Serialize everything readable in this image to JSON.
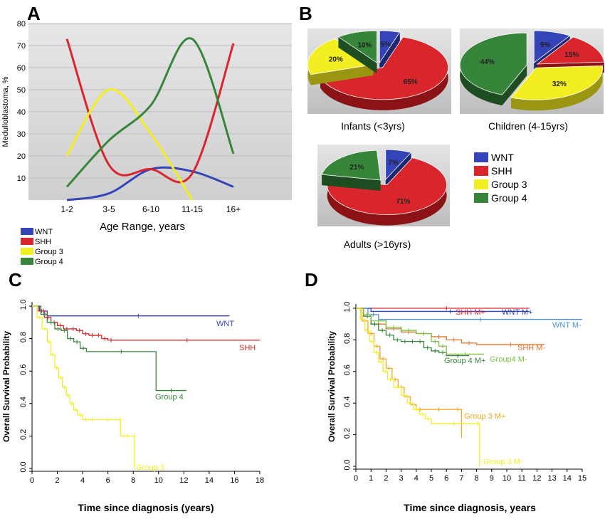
{
  "colors": {
    "WNT": "#3444b8",
    "SHH": "#d8262c",
    "Group 3": "#f2ee22",
    "Group 4": "#36853a"
  },
  "panels": {
    "A": "A",
    "B": "B",
    "C": "C",
    "D": "D"
  },
  "legendA": [
    "WNT",
    "SHH",
    "Group 3",
    "Group 4"
  ],
  "legendB": [
    "WNT",
    "SHH",
    "Group 3",
    "Group 4"
  ],
  "chart_data": [
    {
      "id": "A",
      "type": "line",
      "xlabel": "Age Range, years",
      "ylabel": "Medulloblastoma, %",
      "categories": [
        "1-2",
        "3-5",
        "6-10",
        "11-15",
        "16+"
      ],
      "ylim": [
        0,
        80
      ],
      "yticks": [
        10,
        20,
        30,
        40,
        50,
        60,
        70,
        80
      ],
      "grid": true,
      "series": [
        {
          "name": "WNT",
          "values": [
            0,
            3,
            14,
            13,
            6
          ]
        },
        {
          "name": "SHH",
          "values": [
            73,
            16,
            14,
            12,
            71
          ]
        },
        {
          "name": "Group 3",
          "values": [
            20,
            50,
            30,
            0,
            null
          ]
        },
        {
          "name": "Group 4",
          "values": [
            6,
            27,
            43,
            73,
            21
          ]
        }
      ]
    },
    {
      "id": "B",
      "type": "pie",
      "pies": [
        {
          "label": "Infants (<3yrs)",
          "slices": [
            {
              "name": "WNT",
              "value": 5,
              "label": "5%"
            },
            {
              "name": "SHH",
              "value": 65,
              "label": "65%"
            },
            {
              "name": "Group 3",
              "value": 20,
              "label": "20%"
            },
            {
              "name": "Group 4",
              "value": 10,
              "label": "10%"
            }
          ]
        },
        {
          "label": "Children (4-15yrs)",
          "slices": [
            {
              "name": "WNT",
              "value": 9,
              "label": "9%"
            },
            {
              "name": "SHH",
              "value": 15,
              "label": "15%"
            },
            {
              "name": "Group 3",
              "value": 32,
              "label": "32%"
            },
            {
              "name": "Group 4",
              "value": 44,
              "label": "44%"
            }
          ]
        },
        {
          "label": "Adults (>16yrs)",
          "slices": [
            {
              "name": "WNT",
              "value": 7,
              "label": "7%"
            },
            {
              "name": "SHH",
              "value": 71,
              "label": "71%"
            },
            {
              "name": "Group 3",
              "value": 0,
              "label": ""
            },
            {
              "name": "Group 4",
              "value": 21,
              "label": "21%"
            }
          ]
        }
      ]
    },
    {
      "id": "C",
      "type": "line",
      "xlabel": "Time since diagnosis (years)",
      "ylabel": "Overall Survival Probability",
      "xlim": [
        0,
        18
      ],
      "xticks": [
        0,
        2,
        4,
        6,
        8,
        10,
        12,
        14,
        16,
        18
      ],
      "ylim": [
        0,
        1
      ],
      "yticks": [
        "0.0",
        "0.2",
        "0.4",
        "0.6",
        "0.8",
        "1.0"
      ],
      "series": [
        {
          "name": "WNT",
          "label": "WNT",
          "x": [
            0,
            0.6,
            1.2,
            15.6
          ],
          "y": [
            1,
            0.97,
            0.94,
            0.94
          ]
        },
        {
          "name": "SHH",
          "label": "SHH",
          "x": [
            0,
            0.5,
            1,
            1.5,
            2,
            2.5,
            3,
            3.5,
            4,
            4.5,
            5,
            5.5,
            6,
            6.5,
            18
          ],
          "y": [
            1,
            0.97,
            0.93,
            0.9,
            0.88,
            0.86,
            0.86,
            0.85,
            0.83,
            0.82,
            0.82,
            0.8,
            0.79,
            0.79,
            0.79
          ]
        },
        {
          "name": "Group 4",
          "label": "Group 4",
          "x": [
            0,
            0.7,
            1.2,
            1.8,
            2.3,
            2.8,
            3.3,
            3.8,
            4.3,
            9.8,
            12.2
          ],
          "y": [
            1,
            0.95,
            0.9,
            0.86,
            0.85,
            0.8,
            0.78,
            0.74,
            0.72,
            0.48,
            0.48
          ]
        },
        {
          "name": "Group 3",
          "label": "Group 3",
          "x": [
            0,
            0.4,
            0.8,
            1.2,
            1.5,
            1.8,
            2.1,
            2.4,
            2.7,
            3.0,
            3.3,
            3.6,
            4.0,
            4.5,
            5.0,
            6.9,
            7.0,
            8.1,
            8.1
          ],
          "y": [
            1,
            0.93,
            0.86,
            0.78,
            0.7,
            0.62,
            0.56,
            0.5,
            0.45,
            0.4,
            0.36,
            0.33,
            0.3,
            0.3,
            0.3,
            0.3,
            0.2,
            0.2,
            0
          ]
        }
      ]
    },
    {
      "id": "D",
      "type": "line",
      "xlabel": "Time since diagnosis, years",
      "ylabel": "Overall Survival Probability",
      "xlim": [
        0,
        15
      ],
      "xticks": [
        0,
        1,
        2,
        3,
        4,
        5,
        6,
        7,
        8,
        9,
        10,
        11,
        12,
        13,
        14,
        15
      ],
      "ylim": [
        0,
        1
      ],
      "yticks": [
        "0.0",
        "0.2",
        "0.4",
        "0.6",
        "0.8",
        "1.0"
      ],
      "series": [
        {
          "name": "SHH M+",
          "label": "SHH M+",
          "color": "#d8262c",
          "x": [
            0,
            0.5,
            11.5
          ],
          "y": [
            1,
            1,
            1
          ]
        },
        {
          "name": "WNT M+",
          "label": "WNT M+",
          "color": "#3444b8",
          "x": [
            0,
            1,
            11.5
          ],
          "y": [
            1,
            0.98,
            0.98
          ]
        },
        {
          "name": "WNT M-",
          "label": "WNT M-",
          "color": "#4b8fdc",
          "x": [
            0,
            0.8,
            1.5,
            15
          ],
          "y": [
            1,
            0.96,
            0.93,
            0.93
          ]
        },
        {
          "name": "SHH M-",
          "label": "SHH M-",
          "color": "#e0742e",
          "x": [
            0,
            0.5,
            1,
            2,
            3,
            4,
            5,
            6,
            7,
            8,
            12.5
          ],
          "y": [
            1,
            0.95,
            0.9,
            0.87,
            0.85,
            0.84,
            0.82,
            0.8,
            0.78,
            0.77,
            0.77
          ]
        },
        {
          "name": "Group 4 M+",
          "label": "Group 4 M+",
          "color": "#36853a",
          "x": [
            0,
            0.5,
            1,
            1.5,
            2,
            2.5,
            3,
            3.5,
            4,
            4.5,
            5,
            5.5,
            6,
            7.5
          ],
          "y": [
            1,
            0.95,
            0.9,
            0.86,
            0.83,
            0.8,
            0.79,
            0.79,
            0.79,
            0.75,
            0.73,
            0.72,
            0.7,
            0.7
          ]
        },
        {
          "name": "Group4 M-",
          "label": "Group4 M-",
          "color": "#7ac143",
          "x": [
            0,
            0.5,
            1,
            2,
            3,
            4,
            5,
            5.5,
            6,
            8.5
          ],
          "y": [
            1,
            0.96,
            0.92,
            0.88,
            0.86,
            0.84,
            0.79,
            0.76,
            0.71,
            0.71
          ]
        },
        {
          "name": "Group 3 M+",
          "label": "Group 3 M+",
          "color": "#f5a623",
          "x": [
            0,
            0.4,
            0.8,
            1.2,
            1.6,
            2.0,
            2.4,
            2.8,
            3.2,
            3.6,
            4.0,
            4.5,
            6.5,
            7.0,
            7.0
          ],
          "y": [
            1,
            0.92,
            0.84,
            0.76,
            0.68,
            0.62,
            0.55,
            0.5,
            0.44,
            0.39,
            0.36,
            0.36,
            0.36,
            0.2,
            0.18
          ]
        },
        {
          "name": "Group 3 M-",
          "label": "Group 3 M-",
          "color": "#f2ee22",
          "x": [
            0,
            0.3,
            0.6,
            0.9,
            1.2,
            1.5,
            1.8,
            2.1,
            2.5,
            3.0,
            3.4,
            3.8,
            4.2,
            4.6,
            5.0,
            8.0,
            8.2
          ],
          "y": [
            1,
            0.93,
            0.86,
            0.79,
            0.72,
            0.66,
            0.6,
            0.55,
            0.5,
            0.45,
            0.4,
            0.36,
            0.33,
            0.3,
            0.27,
            0.27,
            0
          ]
        }
      ]
    }
  ]
}
